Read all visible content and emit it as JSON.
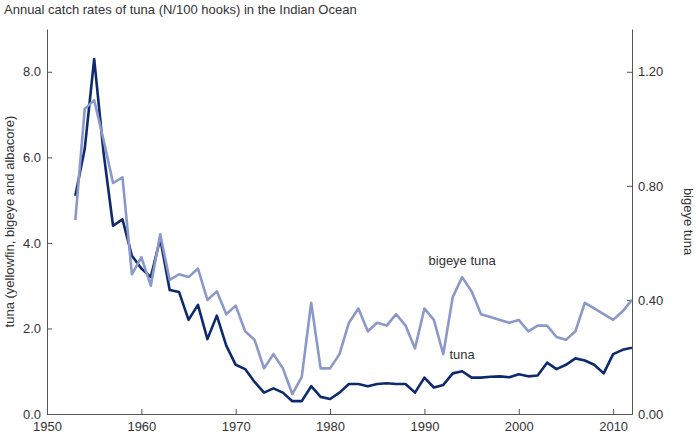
{
  "chart_data": {
    "type": "line",
    "title": "Annual catch rates of tuna (N/100 hooks) in the Indian Ocean",
    "y_label": "tuna (yellowfin, bigeye and albacore)",
    "y2_label": "bigeye tuna",
    "x": [
      1953,
      1954,
      1955,
      1956,
      1957,
      1958,
      1959,
      1960,
      1961,
      1962,
      1963,
      1964,
      1965,
      1966,
      1967,
      1968,
      1969,
      1970,
      1971,
      1972,
      1973,
      1974,
      1975,
      1976,
      1977,
      1978,
      1979,
      1980,
      1981,
      1982,
      1983,
      1984,
      1985,
      1986,
      1987,
      1988,
      1989,
      1990,
      1991,
      1992,
      1993,
      1994,
      1995,
      1996,
      1997,
      1998,
      1999,
      2000,
      2001,
      2002,
      2003,
      2004,
      2005,
      2006,
      2007,
      2008,
      2009,
      2010,
      2011,
      2012
    ],
    "series": [
      {
        "name": "tuna",
        "color": "#0e2a6e",
        "values": [
          5.1,
          6.2,
          8.3,
          6.1,
          4.4,
          4.55,
          3.7,
          3.4,
          3.2,
          4.1,
          2.9,
          2.85,
          2.2,
          2.55,
          1.75,
          2.3,
          1.6,
          1.15,
          1.05,
          0.75,
          0.5,
          0.6,
          0.5,
          0.3,
          0.3,
          0.65,
          0.4,
          0.35,
          0.5,
          0.7,
          0.7,
          0.65,
          0.7,
          0.72,
          0.7,
          0.7,
          0.5,
          0.85,
          0.62,
          0.68,
          0.95,
          1.0,
          0.85,
          0.85,
          0.87,
          0.88,
          0.86,
          0.93,
          0.88,
          0.9,
          1.2,
          1.05,
          1.15,
          1.3,
          1.25,
          1.15,
          0.95,
          1.4,
          1.5,
          1.55
        ]
      },
      {
        "name": "bigeye tuna",
        "color": "#8a99c9",
        "axis": "y2",
        "values": [
          0.68,
          1.07,
          1.1,
          0.96,
          0.81,
          0.83,
          0.49,
          0.55,
          0.45,
          0.63,
          0.47,
          0.49,
          0.48,
          0.51,
          0.4,
          0.43,
          0.35,
          0.38,
          0.29,
          0.26,
          0.16,
          0.21,
          0.16,
          0.07,
          0.13,
          0.39,
          0.16,
          0.16,
          0.21,
          0.32,
          0.37,
          0.29,
          0.32,
          0.31,
          0.35,
          0.31,
          0.23,
          0.37,
          0.33,
          0.21,
          0.41,
          0.48,
          0.43,
          0.35,
          0.34,
          0.33,
          0.32,
          0.33,
          0.29,
          0.31,
          0.31,
          0.27,
          0.26,
          0.29,
          0.39,
          0.37,
          0.35,
          0.33,
          0.36,
          0.4
        ]
      }
    ],
    "xlim": [
      1950,
      2012
    ],
    "xticks": [
      1950,
      1960,
      1970,
      1980,
      1990,
      2000,
      2010
    ],
    "ylim": [
      0,
      9
    ],
    "yticks": [
      {
        "value": 0,
        "label": "0.0"
      },
      {
        "value": 2,
        "label": "2.0"
      },
      {
        "value": 4,
        "label": "4.0"
      },
      {
        "value": 6,
        "label": "6.0"
      },
      {
        "value": 8,
        "label": "8.0"
      }
    ],
    "y2lim": [
      0,
      1.35
    ],
    "y2ticks": [
      {
        "value": 0,
        "label": "0.00"
      },
      {
        "value": 0.4,
        "label": "0.40"
      },
      {
        "value": 0.8,
        "label": "0.80"
      },
      {
        "value": 1.2,
        "label": "1.20"
      }
    ],
    "grid": false
  }
}
